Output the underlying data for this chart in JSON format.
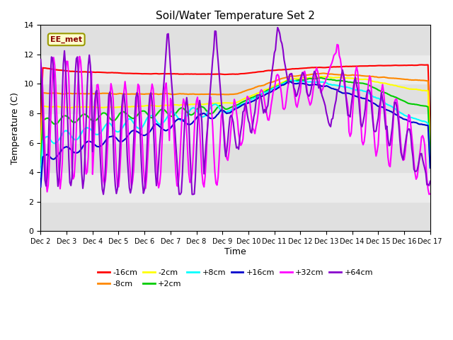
{
  "title": "Soil/Water Temperature Set 2",
  "xlabel": "Time",
  "ylabel": "Temperature (C)",
  "ylim": [
    0,
    14
  ],
  "yticks": [
    0,
    2,
    4,
    6,
    8,
    10,
    12,
    14
  ],
  "xtick_labels": [
    "Dec 2",
    "Dec 3",
    "Dec 4",
    "Dec 5",
    "Dec 6",
    "Dec 7",
    "Dec 8",
    "Dec 9",
    "Dec 10",
    "Dec 11",
    "Dec 12",
    "Dec 13",
    "Dec 14",
    "Dec 15",
    "Dec 16",
    "Dec 17"
  ],
  "annotation_text": "EE_met",
  "series_order": [
    "-16cm",
    "-8cm",
    "-2cm",
    "+2cm",
    "+8cm",
    "+16cm",
    "+32cm",
    "+64cm"
  ],
  "series_colors": [
    "#ff0000",
    "#ff8800",
    "#ffff00",
    "#00cc00",
    "#00ffff",
    "#0000cc",
    "#ff00ff",
    "#8800cc"
  ],
  "series_linewidths": [
    1.5,
    1.5,
    1.5,
    1.5,
    1.5,
    1.5,
    1.5,
    1.5
  ],
  "background_color": "#ffffff",
  "stripe_colors": [
    "#e0e0e0",
    "#ececec"
  ]
}
